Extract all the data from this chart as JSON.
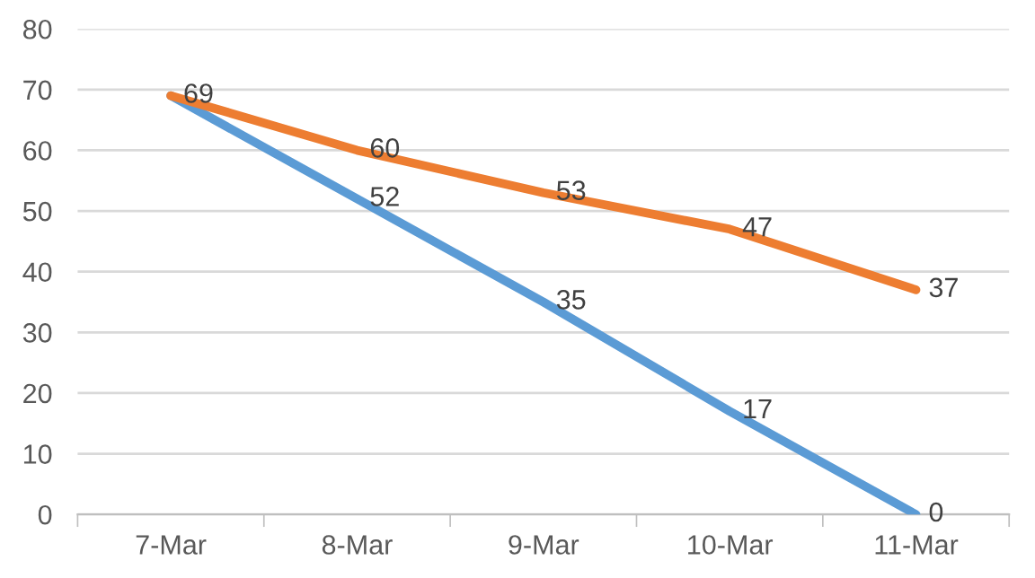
{
  "chart_data": {
    "type": "line",
    "categories": [
      "7-Mar",
      "8-Mar",
      "9-Mar",
      "10-Mar",
      "11-Mar"
    ],
    "series": [
      {
        "color": "#5b9bd5",
        "values": [
          69,
          52,
          35,
          17,
          0
        ],
        "value_labels": [
          null,
          "52",
          "35",
          "17",
          "0"
        ]
      },
      {
        "color": "#ed7d31",
        "values": [
          69,
          60,
          53,
          47,
          37
        ],
        "value_labels": [
          "69",
          "60",
          "53",
          "47",
          "37"
        ]
      }
    ],
    "ylim": [
      0,
      80
    ],
    "yticks": [
      0,
      10,
      20,
      30,
      40,
      50,
      60,
      70,
      80
    ],
    "grid": "y",
    "legend": false,
    "marker": "none",
    "line_style": "solid"
  }
}
